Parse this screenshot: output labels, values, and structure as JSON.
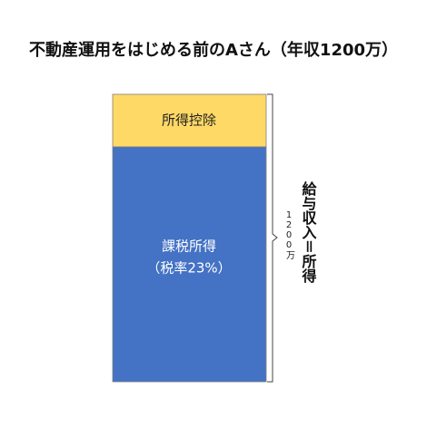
{
  "title": "不動産運用をはじめる前のAさん（年収1200万）",
  "blocks": [
    {
      "label": "所得控除"
    },
    {
      "label": "課税所得",
      "sublabel": "（税率23%）"
    }
  ],
  "brace": {
    "label": "給与収入＝所得",
    "sublabel": "1200万"
  }
}
